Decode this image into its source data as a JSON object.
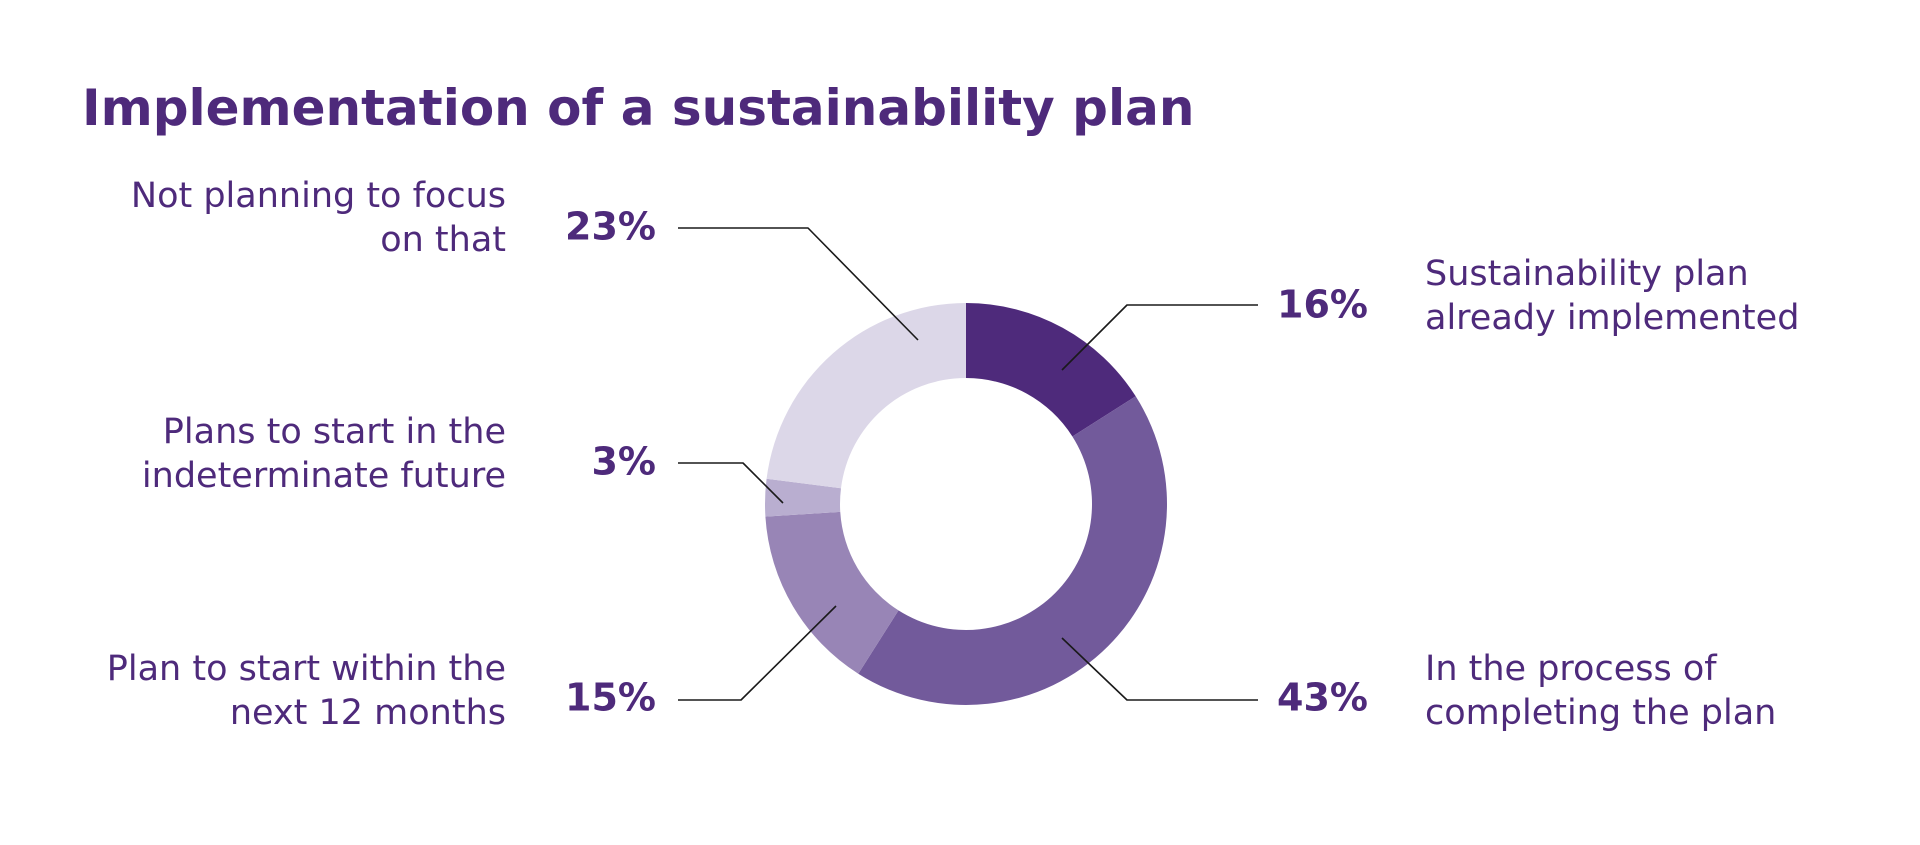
{
  "chart_data": {
    "type": "pie",
    "donut": true,
    "title": "Implementation of a sustainability plan",
    "unit": "%",
    "slices": [
      {
        "label": "Sustainability plan already implemented",
        "label_lines": [
          "Sustainability plan",
          "already implemented"
        ],
        "value": 16,
        "value_label": "16%",
        "color": "#4e2a7b"
      },
      {
        "label": "In the process of completing the plan",
        "label_lines": [
          "In the process of",
          "completing the plan"
        ],
        "value": 43,
        "value_label": "43%",
        "color": "#725a9b"
      },
      {
        "label": "Plan to start within the next 12 months",
        "label_lines": [
          "Plan to start within the",
          "next 12 months"
        ],
        "value": 15,
        "value_label": "15%",
        "color": "#9885b6"
      },
      {
        "label": "Plans to start in the indeterminate future",
        "label_lines": [
          "Plans to start in the",
          "indeterminate future"
        ],
        "value": 3,
        "value_label": "3%",
        "color": "#b9aed0"
      },
      {
        "label": "Not planning to focus on that",
        "label_lines": [
          "Not planning to focus",
          "on that"
        ],
        "value": 23,
        "value_label": "23%",
        "color": "#dcd7e8"
      }
    ],
    "colors": {
      "title": "#4e2a7b",
      "label": "#4e2a7b",
      "leader_line": "#1a1a1a"
    }
  }
}
